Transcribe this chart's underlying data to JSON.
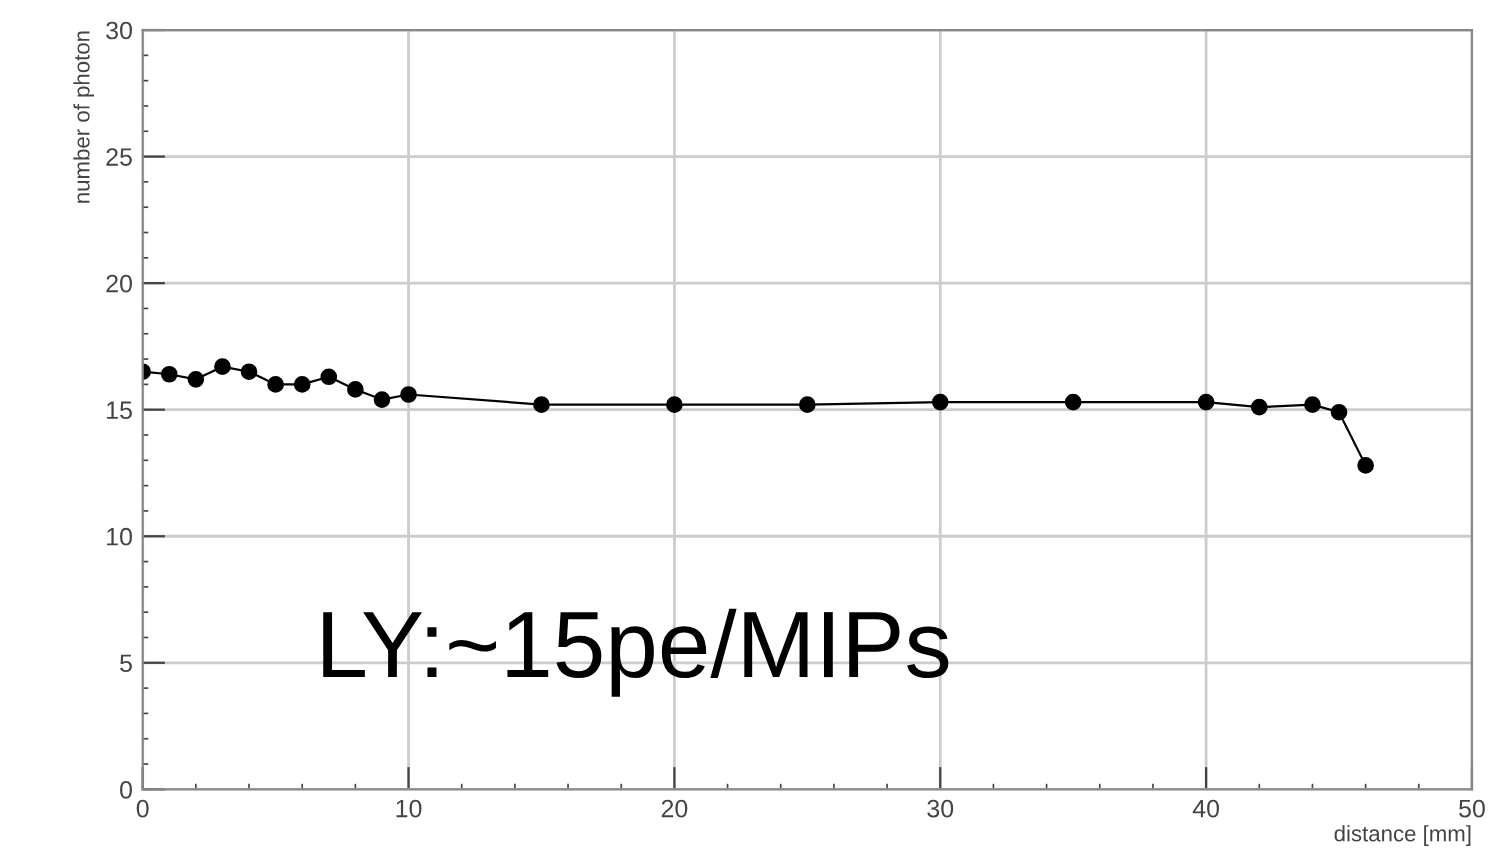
{
  "chart_data": {
    "type": "line",
    "xlabel": "distance [mm]",
    "ylabel": "number of photon",
    "x": [
      0,
      1,
      2,
      3,
      4,
      5,
      6,
      7,
      8,
      9,
      10,
      15,
      20,
      25,
      30,
      35,
      40,
      42,
      44,
      45,
      46
    ],
    "series": [
      {
        "color": "#000000",
        "values": [
          16.5,
          16.4,
          16.2,
          16.7,
          16.5,
          16.0,
          16.0,
          16.3,
          15.8,
          15.4,
          15.6,
          15.2,
          15.2,
          15.2,
          15.3,
          15.3,
          15.3,
          15.1,
          15.2,
          14.9,
          12.8
        ]
      }
    ],
    "xlim": [
      0,
      50
    ],
    "ylim": [
      0,
      30
    ],
    "xticks": [
      0,
      10,
      20,
      30,
      40,
      50
    ],
    "yticks": [
      0,
      5,
      10,
      15,
      20,
      25,
      30
    ],
    "grid": true,
    "marker": "circle",
    "line_style": "solid",
    "annotations": [
      "LY:~15pe/MIPs"
    ]
  }
}
